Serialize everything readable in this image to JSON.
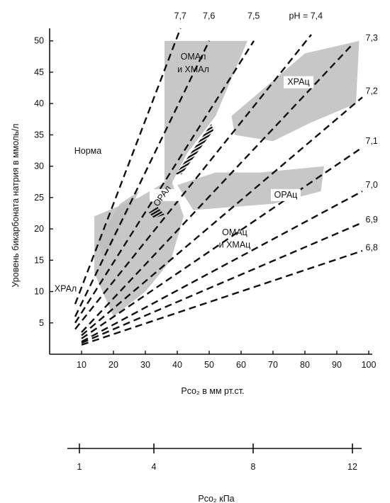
{
  "chart_data": [
    {
      "type": "line",
      "xlabel": "Pco₂ в мм рт.ст.",
      "ylabel": "Уровень бикарбоната натрия в ммоль/л",
      "xlim": [
        0,
        100
      ],
      "ylim": [
        0,
        52
      ],
      "x_ticks": [
        10,
        20,
        30,
        40,
        50,
        60,
        70,
        80,
        90,
        100
      ],
      "y_ticks": [
        5,
        10,
        15,
        20,
        25,
        30,
        35,
        40,
        45,
        50
      ],
      "isopleth_prefix": "pH = ",
      "isopleths": [
        {
          "label": "7,7",
          "x": [
            8,
            41
          ],
          "y": [
            8,
            52
          ],
          "label_x": 39,
          "label_y": 54
        },
        {
          "label": "7,6",
          "x": [
            8,
            50
          ],
          "y": [
            6,
            50
          ],
          "label_x": 48,
          "label_y": 54
        },
        {
          "label": "7,5",
          "x": [
            8,
            64
          ],
          "y": [
            5,
            50
          ],
          "label_x": 62,
          "label_y": 54
        },
        {
          "label": "7,4",
          "x": [
            8,
            82
          ],
          "y": [
            4,
            51
          ],
          "label_x": 75,
          "label_y": 54
        },
        {
          "label": "7,3",
          "x": [
            10,
            95
          ],
          "y": [
            3.5,
            49.5
          ],
          "label_x": 99,
          "label_y": 50.5
        },
        {
          "label": "7,2",
          "x": [
            10,
            98
          ],
          "y": [
            3,
            41
          ],
          "label_x": 99,
          "label_y": 42
        },
        {
          "label": "7,1",
          "x": [
            10,
            98
          ],
          "y": [
            2.5,
            33
          ],
          "label_x": 99,
          "label_y": 34
        },
        {
          "label": "7,0",
          "x": [
            10,
            98
          ],
          "y": [
            2,
            26
          ],
          "label_x": 99,
          "label_y": 27
        },
        {
          "label": "6,9",
          "x": [
            10,
            98
          ],
          "y": [
            1.8,
            21
          ],
          "label_x": 99,
          "label_y": 21.5
        },
        {
          "label": "6,8",
          "x": [
            10,
            98
          ],
          "y": [
            1.5,
            16.5
          ],
          "label_x": 99,
          "label_y": 17
        }
      ],
      "regions": [
        {
          "name": "ОМАл и ХМАл",
          "polygon": [
            [
              36,
              50
            ],
            [
              62,
              50
            ],
            [
              52,
              38
            ],
            [
              43,
              32
            ],
            [
              36,
              25
            ]
          ]
        },
        {
          "name": "ХРАц",
          "polygon": [
            [
              57,
              38
            ],
            [
              80,
              48
            ],
            [
              97,
              50
            ],
            [
              96,
              40
            ],
            [
              82,
              37
            ],
            [
              70,
              34
            ],
            [
              58,
              35
            ]
          ]
        },
        {
          "name": "ОРАц",
          "polygon": [
            [
              40,
              27
            ],
            [
              52,
              29
            ],
            [
              66,
              29
            ],
            [
              86,
              30
            ],
            [
              85,
              26
            ],
            [
              70,
              24
            ],
            [
              45,
              23
            ]
          ]
        },
        {
          "name": "ОРАл",
          "polygon": [
            [
              14,
              22
            ],
            [
              28,
              25
            ],
            [
              38,
              28
            ],
            [
              42,
              22
            ],
            [
              38,
              15
            ],
            [
              30,
              10
            ],
            [
              20,
              6
            ],
            [
              14,
              13
            ]
          ]
        },
        {
          "name": "ХРАл",
          "polygon": [
            [
              15,
              18
            ],
            [
              22,
              24
            ],
            [
              28,
              26
            ],
            [
              23,
              21
            ],
            [
              17,
              15
            ]
          ]
        }
      ],
      "annotations": [
        {
          "text": "Норма",
          "x": 12,
          "y": 32
        },
        {
          "text": "ОМАл",
          "x": 45,
          "y": 47
        },
        {
          "text": "и ХМАл",
          "x": 45,
          "y": 45
        },
        {
          "text": "ХРАц",
          "x": 78,
          "y": 43
        },
        {
          "text": "ОРАц",
          "x": 74,
          "y": 25
        },
        {
          "text": "ОРАл",
          "x": 36,
          "y": 25
        },
        {
          "text": "ХРАл",
          "x": 5,
          "y": 10
        },
        {
          "text": "ОМАц",
          "x": 58,
          "y": 19
        },
        {
          "text": "и ХМАц",
          "x": 58,
          "y": 17
        }
      ]
    },
    {
      "type": "axis",
      "xlabel": "Pco₂ кПа",
      "ticks": [
        1,
        4,
        8,
        12
      ]
    }
  ]
}
